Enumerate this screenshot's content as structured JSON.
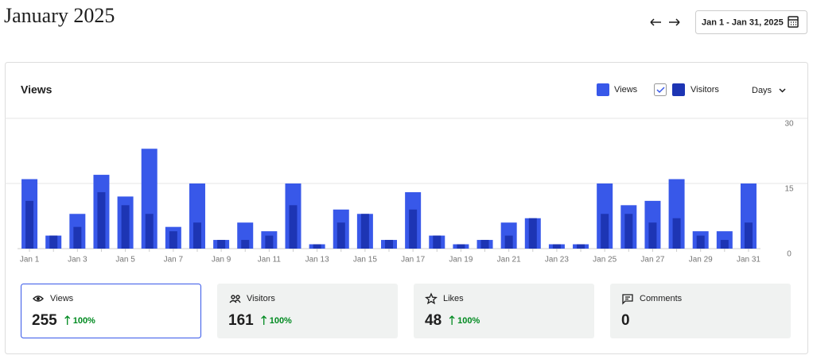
{
  "header": {
    "title": "January 2025",
    "date_range": "Jan 1 - Jan 31, 2025"
  },
  "chart_data": {
    "type": "bar",
    "title": "Views",
    "period_selector": "Days",
    "categories": [
      "Jan 1",
      null,
      "Jan 3",
      null,
      "Jan 5",
      null,
      "Jan 7",
      null,
      "Jan 9",
      null,
      "Jan 11",
      null,
      "Jan 13",
      null,
      "Jan 15",
      null,
      "Jan 17",
      null,
      "Jan 19",
      null,
      "Jan 21",
      null,
      "Jan 23",
      null,
      "Jan 25",
      null,
      "Jan 27",
      null,
      "Jan 29",
      null,
      "Jan 31"
    ],
    "series": [
      {
        "name": "Views",
        "color": "#3858e9",
        "values": [
          16,
          3,
          8,
          17,
          12,
          23,
          5,
          15,
          2,
          6,
          4,
          15,
          1,
          9,
          8,
          2,
          13,
          3,
          1,
          2,
          6,
          7,
          1,
          1,
          15,
          10,
          11,
          16,
          4,
          4,
          15
        ]
      },
      {
        "name": "Visitors",
        "color": "#1d35b4",
        "values": [
          11,
          3,
          5,
          13,
          10,
          8,
          4,
          6,
          2,
          2,
          3,
          10,
          1,
          6,
          8,
          2,
          9,
          3,
          1,
          2,
          3,
          7,
          1,
          1,
          8,
          8,
          6,
          7,
          3,
          2,
          6
        ]
      }
    ],
    "ylim": [
      0,
      30
    ],
    "yticks": [
      0,
      15,
      30
    ],
    "grid": true
  },
  "stats": [
    {
      "label": "Views",
      "value": "255",
      "change": "100%"
    },
    {
      "label": "Visitors",
      "value": "161",
      "change": "100%"
    },
    {
      "label": "Likes",
      "value": "48",
      "change": "100%"
    },
    {
      "label": "Comments",
      "value": "0"
    }
  ]
}
